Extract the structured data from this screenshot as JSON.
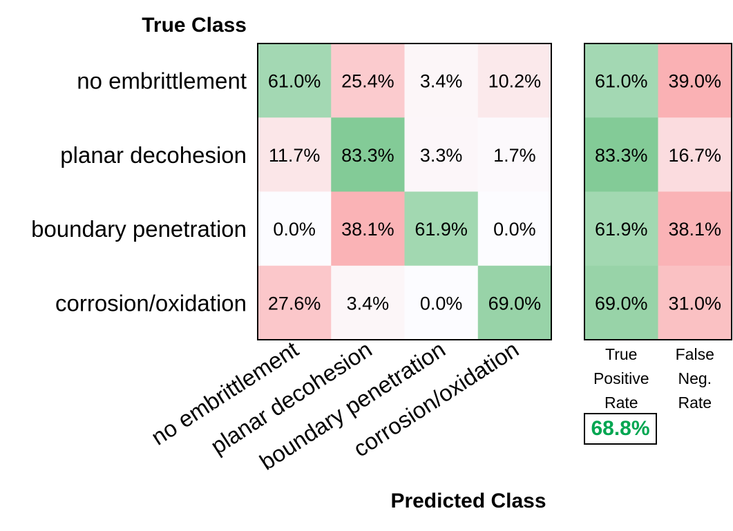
{
  "chart_data": {
    "type": "heatmap",
    "y_axis_title": "True Class",
    "x_axis_title": "Predicted Class",
    "row_labels": [
      "no embrittlement",
      "planar decohesion",
      "boundary penetration",
      "corrosion/oxidation"
    ],
    "col_labels": [
      "no embrittlement",
      "planar decohesion",
      "boundary penetration",
      "corrosion/oxidation"
    ],
    "matrix": [
      [
        61.0,
        25.4,
        3.4,
        10.2
      ],
      [
        11.7,
        83.3,
        3.3,
        1.7
      ],
      [
        0.0,
        38.1,
        61.9,
        0.0
      ],
      [
        27.6,
        3.4,
        0.0,
        69.0
      ]
    ],
    "matrix_text": [
      [
        "61.0%",
        "25.4%",
        "3.4%",
        "10.2%"
      ],
      [
        "11.7%",
        "83.3%",
        "3.3%",
        "1.7%"
      ],
      [
        "0.0%",
        "38.1%",
        "61.9%",
        "0.0%"
      ],
      [
        "27.6%",
        "3.4%",
        "0.0%",
        "69.0%"
      ]
    ],
    "summary_headers": [
      [
        "True",
        "Positive",
        "Rate"
      ],
      [
        "False",
        "Neg.",
        "Rate"
      ]
    ],
    "summary": [
      [
        61.0,
        39.0
      ],
      [
        83.3,
        16.7
      ],
      [
        61.9,
        38.1
      ],
      [
        69.0,
        31.0
      ]
    ],
    "summary_text": [
      [
        "61.0%",
        "39.0%"
      ],
      [
        "83.3%",
        "16.7%"
      ],
      [
        "61.9%",
        "38.1%"
      ],
      [
        "69.0%",
        "31.0%"
      ]
    ],
    "overall_true_positive_rate": "68.8%",
    "colors": {
      "correct": "#63be7b",
      "error": "#f8696b",
      "neutral": "#fcfcff",
      "overall_text": "#00a651"
    }
  }
}
